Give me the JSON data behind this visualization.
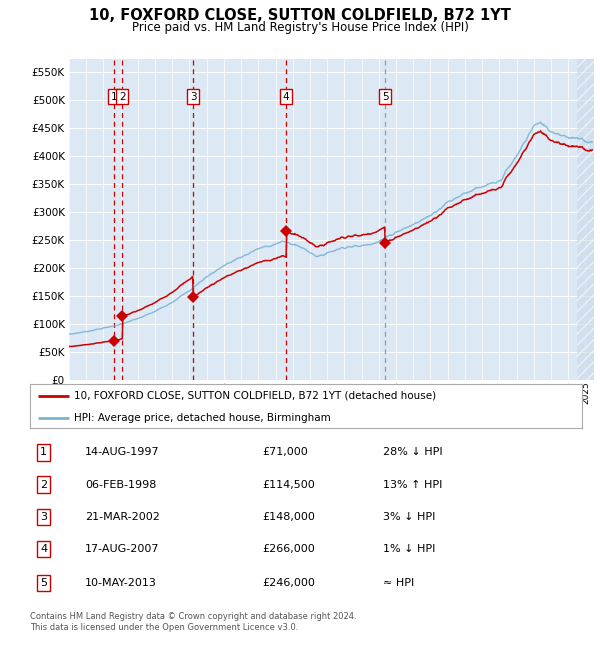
{
  "title": "10, FOXFORD CLOSE, SUTTON COLDFIELD, B72 1YT",
  "subtitle": "Price paid vs. HM Land Registry's House Price Index (HPI)",
  "legend_line1": "10, FOXFORD CLOSE, SUTTON COLDFIELD, B72 1YT (detached house)",
  "legend_line2": "HPI: Average price, detached house, Birmingham",
  "footnote1": "Contains HM Land Registry data © Crown copyright and database right 2024.",
  "footnote2": "This data is licensed under the Open Government Licence v3.0.",
  "sales": [
    {
      "num": 1,
      "date": "14-AUG-1997",
      "price": 71000,
      "hpi_rel": "28% ↓ HPI",
      "year": 1997.62
    },
    {
      "num": 2,
      "date": "06-FEB-1998",
      "price": 114500,
      "hpi_rel": "13% ↑ HPI",
      "year": 1998.1
    },
    {
      "num": 3,
      "date": "21-MAR-2002",
      "price": 148000,
      "hpi_rel": "3% ↓ HPI",
      "year": 2002.22
    },
    {
      "num": 4,
      "date": "17-AUG-2007",
      "price": 266000,
      "hpi_rel": "1% ↓ HPI",
      "year": 2007.62
    },
    {
      "num": 5,
      "date": "10-MAY-2013",
      "price": 246000,
      "hpi_rel": "≈ HPI",
      "year": 2013.36
    }
  ],
  "plot_bg_color": "#dce9f5",
  "grid_color": "#ffffff",
  "hpi_line_color": "#7ab3d4",
  "price_line_color": "#cc0000",
  "marker_color": "#cc0000",
  "vline_color_red": "#cc0000",
  "vline_color_gray": "#999999",
  "sale_box_color": "#cc0000",
  "ylim": [
    0,
    575000
  ],
  "yticks": [
    0,
    50000,
    100000,
    150000,
    200000,
    250000,
    300000,
    350000,
    400000,
    450000,
    500000,
    550000
  ],
  "xlim_start": 1995.0,
  "xlim_end": 2025.5,
  "hpi_keypoints_x": [
    1995.0,
    1996.0,
    1997.0,
    1998.0,
    1999.0,
    2000.0,
    2001.0,
    2002.0,
    2003.0,
    2004.0,
    2005.0,
    2006.0,
    2007.5,
    2008.5,
    2009.5,
    2010.0,
    2011.0,
    2012.0,
    2013.0,
    2014.0,
    2015.0,
    2016.0,
    2017.0,
    2018.0,
    2019.0,
    2020.0,
    2021.0,
    2022.0,
    2022.5,
    2023.0,
    2024.0,
    2025.4
  ],
  "hpi_keypoints_y": [
    82000,
    87000,
    93000,
    100000,
    110000,
    123000,
    140000,
    160000,
    185000,
    205000,
    220000,
    235000,
    248000,
    238000,
    220000,
    228000,
    238000,
    240000,
    248000,
    265000,
    278000,
    295000,
    318000,
    335000,
    345000,
    355000,
    400000,
    455000,
    460000,
    445000,
    435000,
    425000
  ]
}
